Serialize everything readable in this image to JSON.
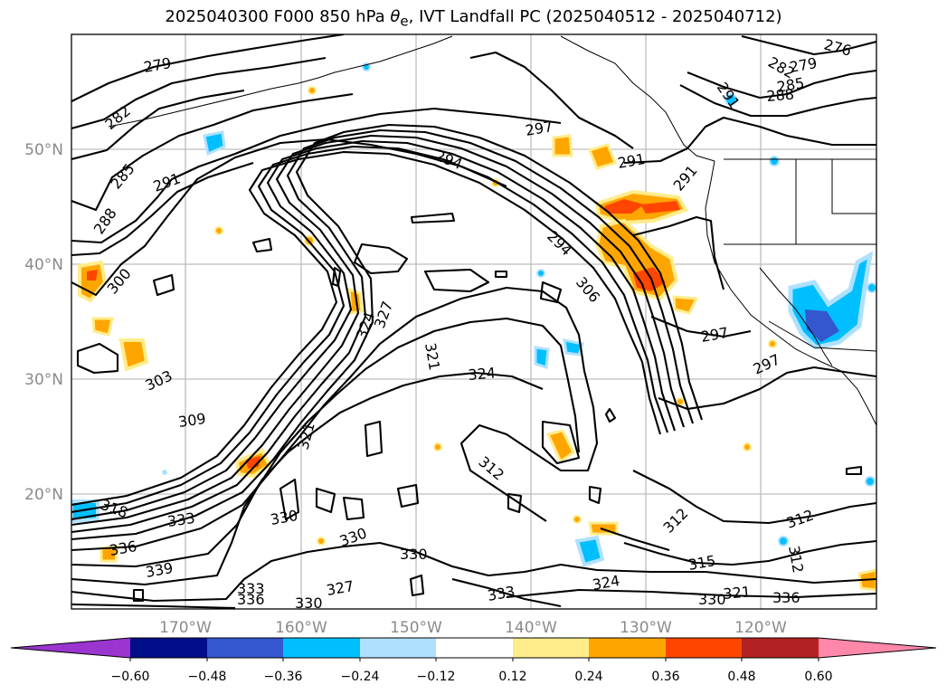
{
  "title": {
    "prefix": "2025040300 F000 850 hPa ",
    "theta": "θ",
    "sub": "e",
    "suffix": ", IVT Landfall PC (2025040512 - 2025040712)"
  },
  "map": {
    "lat_labels": [
      "50°N",
      "40°N",
      "30°N",
      "20°N"
    ],
    "lon_labels": [
      "170°W",
      "160°W",
      "150°W",
      "140°W",
      "130°W",
      "120°W"
    ],
    "contour_labels": [
      "279",
      "282",
      "285",
      "288",
      "291",
      "300",
      "303",
      "309",
      "318",
      "333",
      "336",
      "339",
      "294",
      "297",
      "291",
      "291",
      "276",
      "282",
      "279",
      "285",
      "288",
      "291",
      "294",
      "306",
      "297",
      "297",
      "324",
      "321",
      "327",
      "324",
      "312",
      "312",
      "315",
      "312",
      "312",
      "321",
      "330",
      "330",
      "327",
      "330",
      "336",
      "333",
      "336",
      "324",
      "330",
      "321",
      "333",
      "330"
    ]
  },
  "colorbar": {
    "labels": [
      "−0.60",
      "−0.48",
      "−0.36",
      "−0.24",
      "−0.12",
      "0.12",
      "0.24",
      "0.36",
      "0.48",
      "0.60"
    ],
    "colors": [
      "#9a35cf",
      "#000e8a",
      "#3457d0",
      "#00bfff",
      "#afe1ff",
      "#ffffff",
      "#ffec8a",
      "#ffa500",
      "#ff4500",
      "#b22222",
      "#ff88aa"
    ]
  },
  "colors": {
    "gray_label": "#8a8a8a",
    "contour": "#000000"
  }
}
